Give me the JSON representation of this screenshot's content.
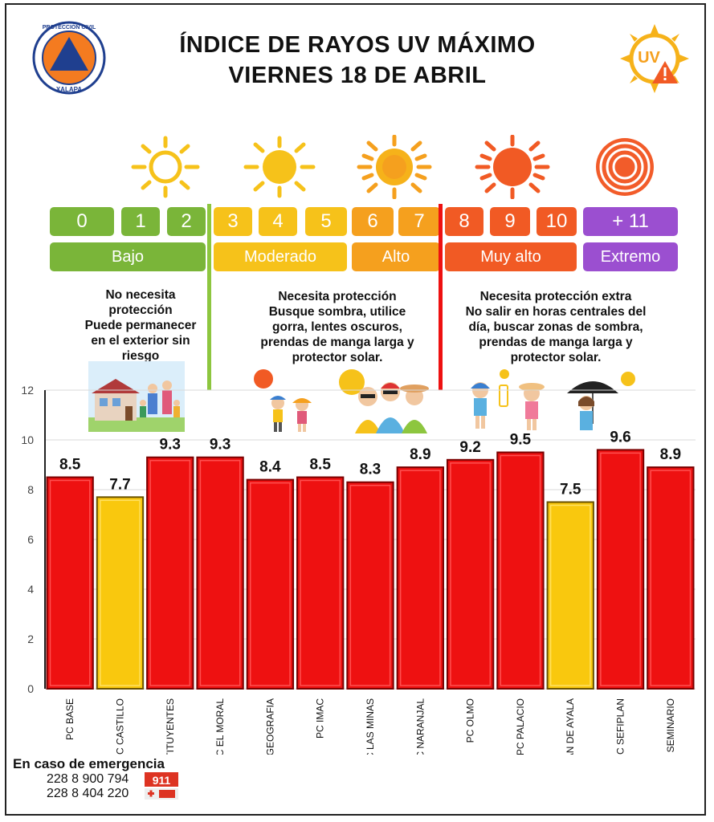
{
  "header": {
    "title_line1": "ÍNDICE DE RAYOS UV MÁXIMO",
    "title_line2": "VIERNES 18 DE ABRIL",
    "logo_text_top": "PROTECCIÓN CIVIL",
    "logo_text_bottom": "XALAPA",
    "uv_badge": "UV"
  },
  "scale": {
    "numbers": [
      {
        "label": "0",
        "color": "#7ab539"
      },
      {
        "label": "1",
        "color": "#7ab539"
      },
      {
        "label": "2",
        "color": "#7ab539"
      },
      {
        "label": "3",
        "color": "#f6c21a"
      },
      {
        "label": "4",
        "color": "#f6c21a"
      },
      {
        "label": "5",
        "color": "#f6c21a"
      },
      {
        "label": "6",
        "color": "#f5a01e"
      },
      {
        "label": "7",
        "color": "#f5a01e"
      },
      {
        "label": "8",
        "color": "#f15a24"
      },
      {
        "label": "9",
        "color": "#f15a24"
      },
      {
        "label": "10",
        "color": "#f15a24"
      },
      {
        "label": "+ 11",
        "color": "#9b4fd0"
      }
    ],
    "categories": [
      {
        "label": "Bajo",
        "color": "#7ab539"
      },
      {
        "label": "Moderado",
        "color": "#f6c21a"
      },
      {
        "label": "Alto",
        "color": "#f5a01e"
      },
      {
        "label": "Muy alto",
        "color": "#f15a24"
      },
      {
        "label": "Extremo",
        "color": "#9b4fd0"
      }
    ]
  },
  "advice": {
    "low": [
      "No necesita",
      "protección",
      "Puede permanecer",
      "en el exterior sin",
      "riesgo"
    ],
    "moderate": [
      "Necesita protección",
      "Busque sombra, utilice",
      "gorra, lentes oscuros,",
      "prendas de manga larga y",
      "protector solar."
    ],
    "high": [
      "Necesita protección extra",
      "No salir en horas centrales del",
      "día, buscar zonas de sombra,",
      "prendas de manga larga y",
      "protector solar."
    ]
  },
  "chart_data": {
    "type": "bar",
    "categories": [
      "PC BASE",
      "PC CASTILLO",
      "PC CONSTITUYENTES",
      "PC EL MORAL",
      "PC EL GEOGRAFIA",
      "PC IMAC",
      "PC LAS MINAS",
      "PC NARANJAL",
      "PC OLMO",
      "PC PALACIO",
      "PC PLAN DE AYALA",
      "PC SEFIPLAN",
      "PC SEMINARIO"
    ],
    "values": [
      8.5,
      7.7,
      9.3,
      9.3,
      8.4,
      8.5,
      8.3,
      8.9,
      9.2,
      9.5,
      7.5,
      9.6,
      8.9
    ],
    "value_labels": [
      "8.5",
      "7.7",
      "9.3",
      "9.3",
      "8.4",
      "8.5",
      "8.3",
      "8.9",
      "9.2",
      "9.5",
      "7.5",
      "9.6",
      "8.9"
    ],
    "bar_colors": [
      "#ee1111",
      "#f9c80e",
      "#ee1111",
      "#ee1111",
      "#ee1111",
      "#ee1111",
      "#ee1111",
      "#ee1111",
      "#ee1111",
      "#ee1111",
      "#f9c80e",
      "#ee1111",
      "#ee1111"
    ],
    "ylim": [
      0,
      12
    ],
    "yticks": [
      "0",
      "2",
      "4",
      "6",
      "8",
      "10",
      "12"
    ],
    "grid": true
  },
  "emergency": {
    "heading": "En caso de emergencia",
    "phone1": "228 8 900 794",
    "phone2": "228 8 404 220",
    "badge_text": "911"
  }
}
